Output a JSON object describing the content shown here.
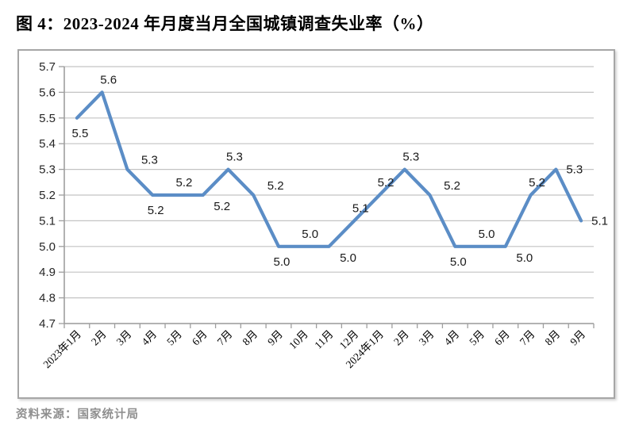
{
  "page": {
    "title": "图 4：2023-2024 年月度当月全国城镇调查失业率（%）",
    "source": "资料来源：国家统计局"
  },
  "colors": {
    "line": "#5B8DC6",
    "grid": "#c3c3c3",
    "axis": "#9e9e9e",
    "border": "#a6a6a6",
    "data_label": "#1a1a1a",
    "axis_label": "#262626",
    "title_text": "#000000",
    "source_text": "#8f8f8f"
  },
  "chart_data": {
    "type": "line",
    "title": "图 4：2023-2024 年月度当月全国城镇调查失业率（%）",
    "xlabel": "",
    "ylabel": "",
    "ylim": [
      4.7,
      5.7
    ],
    "ytick_step": 0.1,
    "ytick_labels": [
      "5.7",
      "5.6",
      "5.5",
      "5.4",
      "5.3",
      "5.2",
      "5.1",
      "5.0",
      "4.9",
      "4.8",
      "4.7"
    ],
    "grid": true,
    "legend": false,
    "categories": [
      "2023年1月",
      "2月",
      "3月",
      "4月",
      "5月",
      "6月",
      "7月",
      "8月",
      "9月",
      "10月",
      "11月",
      "12月",
      "2024年1月",
      "2月",
      "3月",
      "4月",
      "5月",
      "6月",
      "7月",
      "8月",
      "9月"
    ],
    "series": [
      {
        "name": "当月全国城镇调查失业率",
        "values": [
          5.5,
          5.6,
          5.3,
          5.2,
          5.2,
          5.2,
          5.3,
          5.2,
          5.0,
          5.0,
          5.0,
          5.1,
          5.2,
          5.3,
          5.2,
          5.0,
          5.0,
          5.0,
          5.2,
          5.3,
          5.1
        ],
        "data_labels": [
          "5.5",
          "5.6",
          "5.3",
          "5.2",
          "5.2",
          "5.2",
          "5.3",
          "5.2",
          "5.0",
          "5.0",
          "5.0",
          "5.1",
          "5.2",
          "5.3",
          "5.2",
          "5.0",
          "5.0",
          "5.0",
          "5.2",
          "5.3",
          "5.1"
        ],
        "label_positions": [
          "below",
          "above",
          "above-right",
          "below",
          "above",
          "below-right",
          "above",
          "above-right",
          "below",
          "above",
          "below-right",
          "above",
          "above",
          "above",
          "above-right",
          "below",
          "above",
          "below-right",
          "above",
          "right",
          "right"
        ]
      }
    ]
  }
}
